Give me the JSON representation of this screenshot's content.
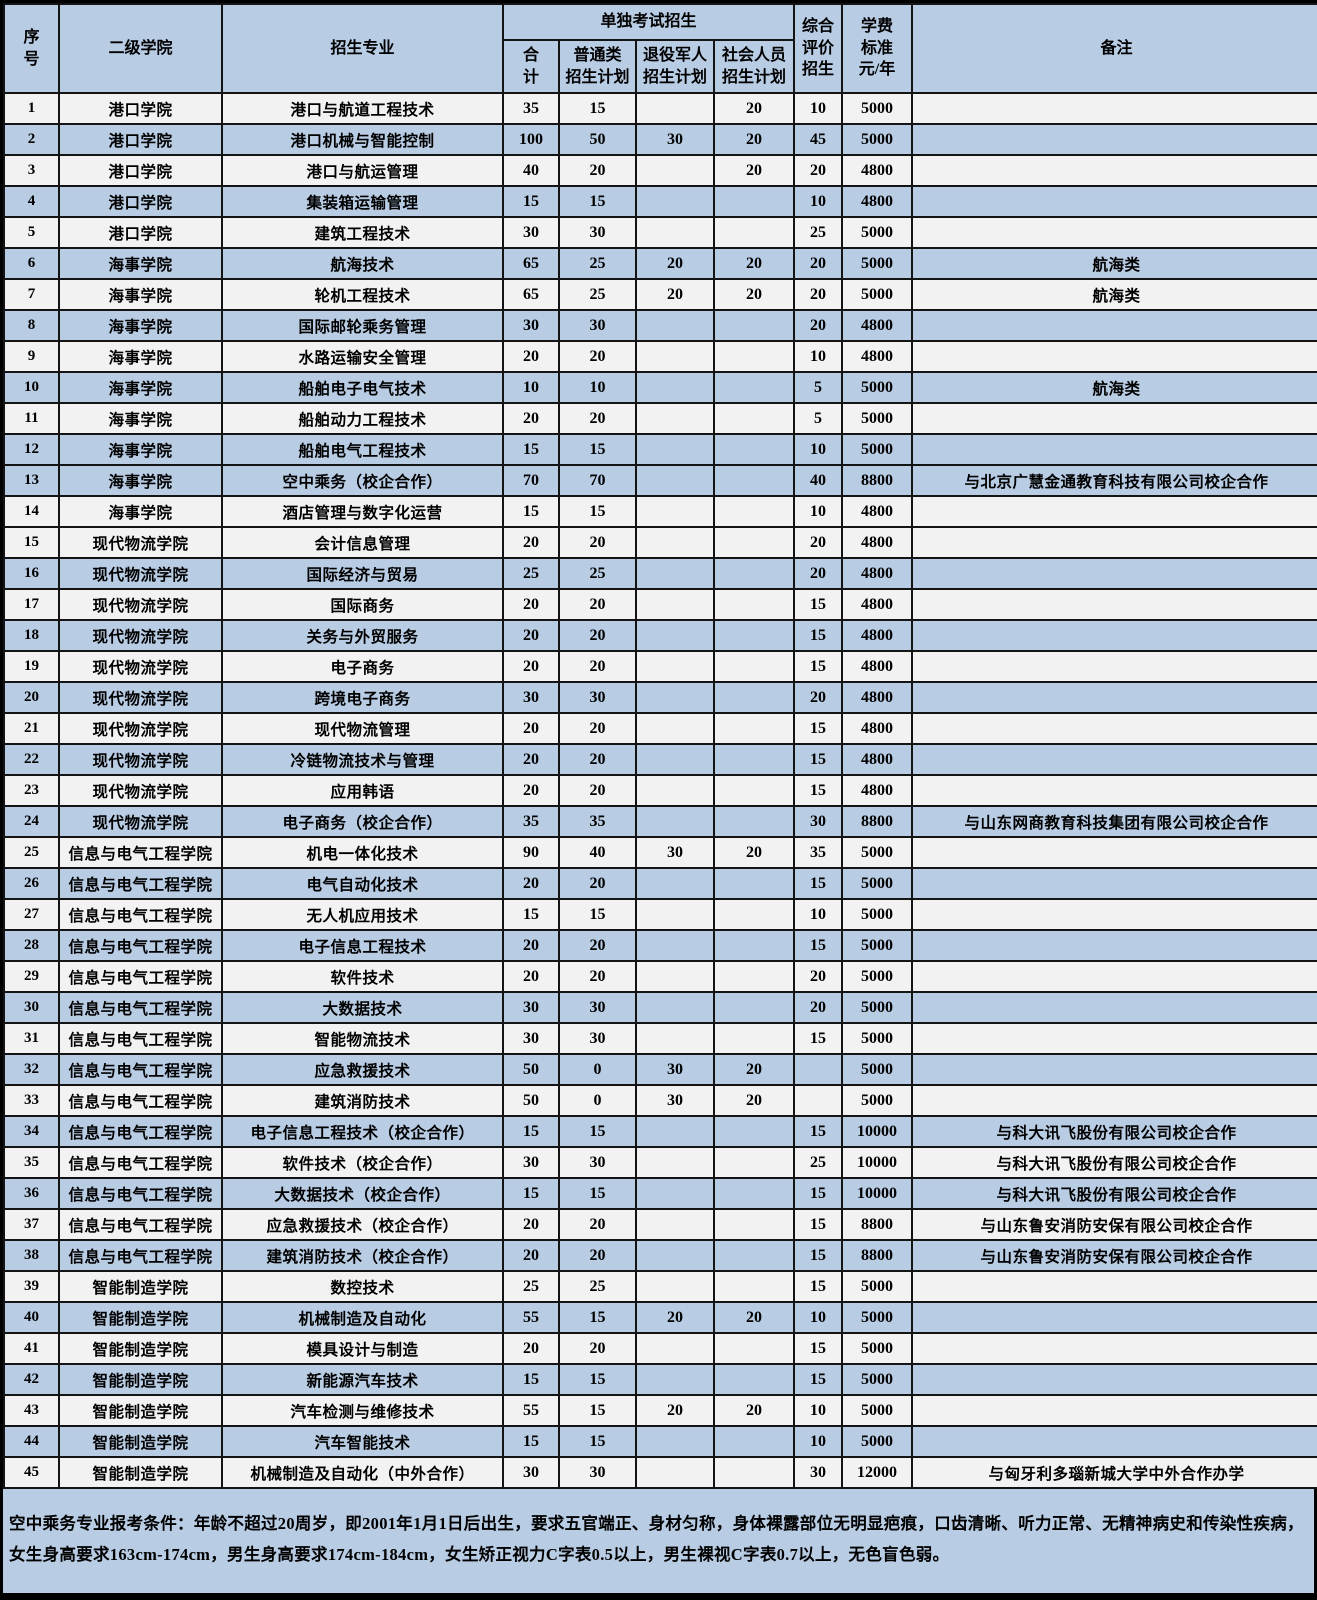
{
  "colors": {
    "row_shaded": "#b8cce4",
    "row_plain": "#f2f2f2",
    "border": "#141414"
  },
  "table": {
    "headers": {
      "no": "序\n号",
      "college": "二级学院",
      "major": "招生专业",
      "separate_exam_group": "单独考试招生",
      "total": "合\n计",
      "regular_plan": "普通类\n招生计划",
      "veteran_plan": "退役军人\n招生计划",
      "social_plan": "社会人员\n招生计划",
      "comprehensive_eval": "综合\n评价\n招生",
      "tuition": "学费\n标准\n元/年",
      "remarks": "备注"
    },
    "rows": [
      {
        "no": "1",
        "college": "港口学院",
        "major": "港口与航道工程技术",
        "total": "35",
        "regular": "15",
        "veteran": "",
        "social": "20",
        "comprehensive": "10",
        "tuition": "5000",
        "remark": "",
        "shaded": false
      },
      {
        "no": "2",
        "college": "港口学院",
        "major": "港口机械与智能控制",
        "total": "100",
        "regular": "50",
        "veteran": "30",
        "social": "20",
        "comprehensive": "45",
        "tuition": "5000",
        "remark": "",
        "shaded": true
      },
      {
        "no": "3",
        "college": "港口学院",
        "major": "港口与航运管理",
        "total": "40",
        "regular": "20",
        "veteran": "",
        "social": "20",
        "comprehensive": "20",
        "tuition": "4800",
        "remark": "",
        "shaded": false
      },
      {
        "no": "4",
        "college": "港口学院",
        "major": "集装箱运输管理",
        "total": "15",
        "regular": "15",
        "veteran": "",
        "social": "",
        "comprehensive": "10",
        "tuition": "4800",
        "remark": "",
        "shaded": true
      },
      {
        "no": "5",
        "college": "港口学院",
        "major": "建筑工程技术",
        "total": "30",
        "regular": "30",
        "veteran": "",
        "social": "",
        "comprehensive": "25",
        "tuition": "5000",
        "remark": "",
        "shaded": false
      },
      {
        "no": "6",
        "college": "海事学院",
        "major": "航海技术",
        "total": "65",
        "regular": "25",
        "veteran": "20",
        "social": "20",
        "comprehensive": "20",
        "tuition": "5000",
        "remark": "航海类",
        "shaded": true
      },
      {
        "no": "7",
        "college": "海事学院",
        "major": "轮机工程技术",
        "total": "65",
        "regular": "25",
        "veteran": "20",
        "social": "20",
        "comprehensive": "20",
        "tuition": "5000",
        "remark": "航海类",
        "shaded": false
      },
      {
        "no": "8",
        "college": "海事学院",
        "major": "国际邮轮乘务管理",
        "total": "30",
        "regular": "30",
        "veteran": "",
        "social": "",
        "comprehensive": "20",
        "tuition": "4800",
        "remark": "",
        "shaded": true
      },
      {
        "no": "9",
        "college": "海事学院",
        "major": "水路运输安全管理",
        "total": "20",
        "regular": "20",
        "veteran": "",
        "social": "",
        "comprehensive": "10",
        "tuition": "4800",
        "remark": "",
        "shaded": false
      },
      {
        "no": "10",
        "college": "海事学院",
        "major": "船舶电子电气技术",
        "total": "10",
        "regular": "10",
        "veteran": "",
        "social": "",
        "comprehensive": "5",
        "tuition": "5000",
        "remark": "航海类",
        "shaded": true
      },
      {
        "no": "11",
        "college": "海事学院",
        "major": "船舶动力工程技术",
        "total": "20",
        "regular": "20",
        "veteran": "",
        "social": "",
        "comprehensive": "5",
        "tuition": "5000",
        "remark": "",
        "shaded": false
      },
      {
        "no": "12",
        "college": "海事学院",
        "major": "船舶电气工程技术",
        "total": "15",
        "regular": "15",
        "veteran": "",
        "social": "",
        "comprehensive": "10",
        "tuition": "5000",
        "remark": "",
        "shaded": true
      },
      {
        "no": "13",
        "college": "海事学院",
        "major": "空中乘务（校企合作）",
        "total": "70",
        "regular": "70",
        "veteran": "",
        "social": "",
        "comprehensive": "40",
        "tuition": "8800",
        "remark": "与北京广慧金通教育科技有限公司校企合作",
        "shaded": true
      },
      {
        "no": "14",
        "college": "海事学院",
        "major": "酒店管理与数字化运营",
        "total": "15",
        "regular": "15",
        "veteran": "",
        "social": "",
        "comprehensive": "10",
        "tuition": "4800",
        "remark": "",
        "shaded": false
      },
      {
        "no": "15",
        "college": "现代物流学院",
        "major": "会计信息管理",
        "total": "20",
        "regular": "20",
        "veteran": "",
        "social": "",
        "comprehensive": "20",
        "tuition": "4800",
        "remark": "",
        "shaded": false
      },
      {
        "no": "16",
        "college": "现代物流学院",
        "major": "国际经济与贸易",
        "total": "25",
        "regular": "25",
        "veteran": "",
        "social": "",
        "comprehensive": "20",
        "tuition": "4800",
        "remark": "",
        "shaded": true
      },
      {
        "no": "17",
        "college": "现代物流学院",
        "major": "国际商务",
        "total": "20",
        "regular": "20",
        "veteran": "",
        "social": "",
        "comprehensive": "15",
        "tuition": "4800",
        "remark": "",
        "shaded": false
      },
      {
        "no": "18",
        "college": "现代物流学院",
        "major": "关务与外贸服务",
        "total": "20",
        "regular": "20",
        "veteran": "",
        "social": "",
        "comprehensive": "15",
        "tuition": "4800",
        "remark": "",
        "shaded": true
      },
      {
        "no": "19",
        "college": "现代物流学院",
        "major": "电子商务",
        "total": "20",
        "regular": "20",
        "veteran": "",
        "social": "",
        "comprehensive": "15",
        "tuition": "4800",
        "remark": "",
        "shaded": false
      },
      {
        "no": "20",
        "college": "现代物流学院",
        "major": "跨境电子商务",
        "total": "30",
        "regular": "30",
        "veteran": "",
        "social": "",
        "comprehensive": "20",
        "tuition": "4800",
        "remark": "",
        "shaded": true
      },
      {
        "no": "21",
        "college": "现代物流学院",
        "major": "现代物流管理",
        "total": "20",
        "regular": "20",
        "veteran": "",
        "social": "",
        "comprehensive": "15",
        "tuition": "4800",
        "remark": "",
        "shaded": false
      },
      {
        "no": "22",
        "college": "现代物流学院",
        "major": "冷链物流技术与管理",
        "total": "20",
        "regular": "20",
        "veteran": "",
        "social": "",
        "comprehensive": "15",
        "tuition": "4800",
        "remark": "",
        "shaded": true
      },
      {
        "no": "23",
        "college": "现代物流学院",
        "major": "应用韩语",
        "total": "20",
        "regular": "20",
        "veteran": "",
        "social": "",
        "comprehensive": "15",
        "tuition": "4800",
        "remark": "",
        "shaded": false
      },
      {
        "no": "24",
        "college": "现代物流学院",
        "major": "电子商务（校企合作）",
        "total": "35",
        "regular": "35",
        "veteran": "",
        "social": "",
        "comprehensive": "30",
        "tuition": "8800",
        "remark": "与山东网商教育科技集团有限公司校企合作",
        "shaded": true
      },
      {
        "no": "25",
        "college": "信息与电气工程学院",
        "major": "机电一体化技术",
        "total": "90",
        "regular": "40",
        "veteran": "30",
        "social": "20",
        "comprehensive": "35",
        "tuition": "5000",
        "remark": "",
        "shaded": false
      },
      {
        "no": "26",
        "college": "信息与电气工程学院",
        "major": "电气自动化技术",
        "total": "20",
        "regular": "20",
        "veteran": "",
        "social": "",
        "comprehensive": "15",
        "tuition": "5000",
        "remark": "",
        "shaded": true
      },
      {
        "no": "27",
        "college": "信息与电气工程学院",
        "major": "无人机应用技术",
        "total": "15",
        "regular": "15",
        "veteran": "",
        "social": "",
        "comprehensive": "10",
        "tuition": "5000",
        "remark": "",
        "shaded": false
      },
      {
        "no": "28",
        "college": "信息与电气工程学院",
        "major": "电子信息工程技术",
        "total": "20",
        "regular": "20",
        "veteran": "",
        "social": "",
        "comprehensive": "15",
        "tuition": "5000",
        "remark": "",
        "shaded": true
      },
      {
        "no": "29",
        "college": "信息与电气工程学院",
        "major": "软件技术",
        "total": "20",
        "regular": "20",
        "veteran": "",
        "social": "",
        "comprehensive": "20",
        "tuition": "5000",
        "remark": "",
        "shaded": false
      },
      {
        "no": "30",
        "college": "信息与电气工程学院",
        "major": "大数据技术",
        "total": "30",
        "regular": "30",
        "veteran": "",
        "social": "",
        "comprehensive": "20",
        "tuition": "5000",
        "remark": "",
        "shaded": true
      },
      {
        "no": "31",
        "college": "信息与电气工程学院",
        "major": "智能物流技术",
        "total": "30",
        "regular": "30",
        "veteran": "",
        "social": "",
        "comprehensive": "15",
        "tuition": "5000",
        "remark": "",
        "shaded": false
      },
      {
        "no": "32",
        "college": "信息与电气工程学院",
        "major": "应急救援技术",
        "total": "50",
        "regular": "0",
        "veteran": "30",
        "social": "20",
        "comprehensive": "",
        "tuition": "5000",
        "remark": "",
        "shaded": true
      },
      {
        "no": "33",
        "college": "信息与电气工程学院",
        "major": "建筑消防技术",
        "total": "50",
        "regular": "0",
        "veteran": "30",
        "social": "20",
        "comprehensive": "",
        "tuition": "5000",
        "remark": "",
        "shaded": false
      },
      {
        "no": "34",
        "college": "信息与电气工程学院",
        "major": "电子信息工程技术（校企合作）",
        "total": "15",
        "regular": "15",
        "veteran": "",
        "social": "",
        "comprehensive": "15",
        "tuition": "10000",
        "remark": "与科大讯飞股份有限公司校企合作",
        "shaded": true
      },
      {
        "no": "35",
        "college": "信息与电气工程学院",
        "major": "软件技术（校企合作）",
        "total": "30",
        "regular": "30",
        "veteran": "",
        "social": "",
        "comprehensive": "25",
        "tuition": "10000",
        "remark": "与科大讯飞股份有限公司校企合作",
        "shaded": false
      },
      {
        "no": "36",
        "college": "信息与电气工程学院",
        "major": "大数据技术（校企合作）",
        "total": "15",
        "regular": "15",
        "veteran": "",
        "social": "",
        "comprehensive": "15",
        "tuition": "10000",
        "remark": "与科大讯飞股份有限公司校企合作",
        "shaded": true
      },
      {
        "no": "37",
        "college": "信息与电气工程学院",
        "major": "应急救援技术（校企合作）",
        "total": "20",
        "regular": "20",
        "veteran": "",
        "social": "",
        "comprehensive": "15",
        "tuition": "8800",
        "remark": "与山东鲁安消防安保有限公司校企合作",
        "shaded": false
      },
      {
        "no": "38",
        "college": "信息与电气工程学院",
        "major": "建筑消防技术（校企合作）",
        "total": "20",
        "regular": "20",
        "veteran": "",
        "social": "",
        "comprehensive": "15",
        "tuition": "8800",
        "remark": "与山东鲁安消防安保有限公司校企合作",
        "shaded": true
      },
      {
        "no": "39",
        "college": "智能制造学院",
        "major": "数控技术",
        "total": "25",
        "regular": "25",
        "veteran": "",
        "social": "",
        "comprehensive": "15",
        "tuition": "5000",
        "remark": "",
        "shaded": false
      },
      {
        "no": "40",
        "college": "智能制造学院",
        "major": "机械制造及自动化",
        "total": "55",
        "regular": "15",
        "veteran": "20",
        "social": "20",
        "comprehensive": "10",
        "tuition": "5000",
        "remark": "",
        "shaded": true
      },
      {
        "no": "41",
        "college": "智能制造学院",
        "major": "模具设计与制造",
        "total": "20",
        "regular": "20",
        "veteran": "",
        "social": "",
        "comprehensive": "15",
        "tuition": "5000",
        "remark": "",
        "shaded": false
      },
      {
        "no": "42",
        "college": "智能制造学院",
        "major": "新能源汽车技术",
        "total": "15",
        "regular": "15",
        "veteran": "",
        "social": "",
        "comprehensive": "15",
        "tuition": "5000",
        "remark": "",
        "shaded": true
      },
      {
        "no": "43",
        "college": "智能制造学院",
        "major": "汽车检测与维修技术",
        "total": "55",
        "regular": "15",
        "veteran": "20",
        "social": "20",
        "comprehensive": "10",
        "tuition": "5000",
        "remark": "",
        "shaded": false
      },
      {
        "no": "44",
        "college": "智能制造学院",
        "major": "汽车智能技术",
        "total": "15",
        "regular": "15",
        "veteran": "",
        "social": "",
        "comprehensive": "10",
        "tuition": "5000",
        "remark": "",
        "shaded": true
      },
      {
        "no": "45",
        "college": "智能制造学院",
        "major": "机械制造及自动化（中外合作）",
        "total": "30",
        "regular": "30",
        "veteran": "",
        "social": "",
        "comprehensive": "30",
        "tuition": "12000",
        "remark": "与匈牙利多瑙新城大学中外合作办学",
        "shaded": false
      }
    ]
  },
  "footer": {
    "label": "空中乘务专业报考条件：",
    "text": "年龄不超过20周岁，即2001年1月1日后出生，要求五官端正、身材匀称，身体裸露部位无明显疤痕，口齿清晰、听力正常、无精神病史和传染性疾病，女生身高要求163cm-174cm，男生身高要求174cm-184cm，女生矫正视力C字表0.5以上，男生裸视C字表0.7以上，无色盲色弱。"
  }
}
